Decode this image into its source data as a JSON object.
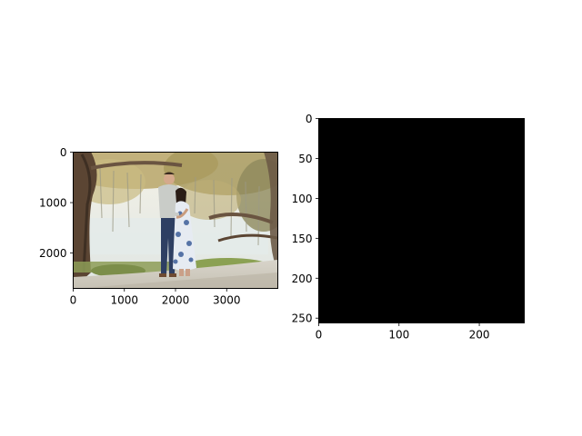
{
  "figure": {
    "background": "#ffffff"
  },
  "chart_data": [
    {
      "type": "image",
      "title": "",
      "xlabel": "",
      "ylabel": "",
      "image_content": "photograph of a couple standing together under moss-draped trees",
      "xlim": [
        0,
        4000
      ],
      "ylim": [
        2700,
        0
      ],
      "y_inverted": true,
      "x_ticks": [
        0,
        1000,
        2000,
        3000
      ],
      "y_ticks": [
        0,
        1000,
        2000
      ],
      "grid": false
    },
    {
      "type": "image",
      "title": "",
      "xlabel": "",
      "ylabel": "",
      "fill_color": "#000000",
      "xlim": [
        0,
        256
      ],
      "ylim": [
        256,
        0
      ],
      "y_inverted": true,
      "x_ticks": [
        0,
        100,
        200
      ],
      "y_ticks": [
        0,
        50,
        100,
        150,
        200,
        250
      ],
      "grid": false
    }
  ]
}
